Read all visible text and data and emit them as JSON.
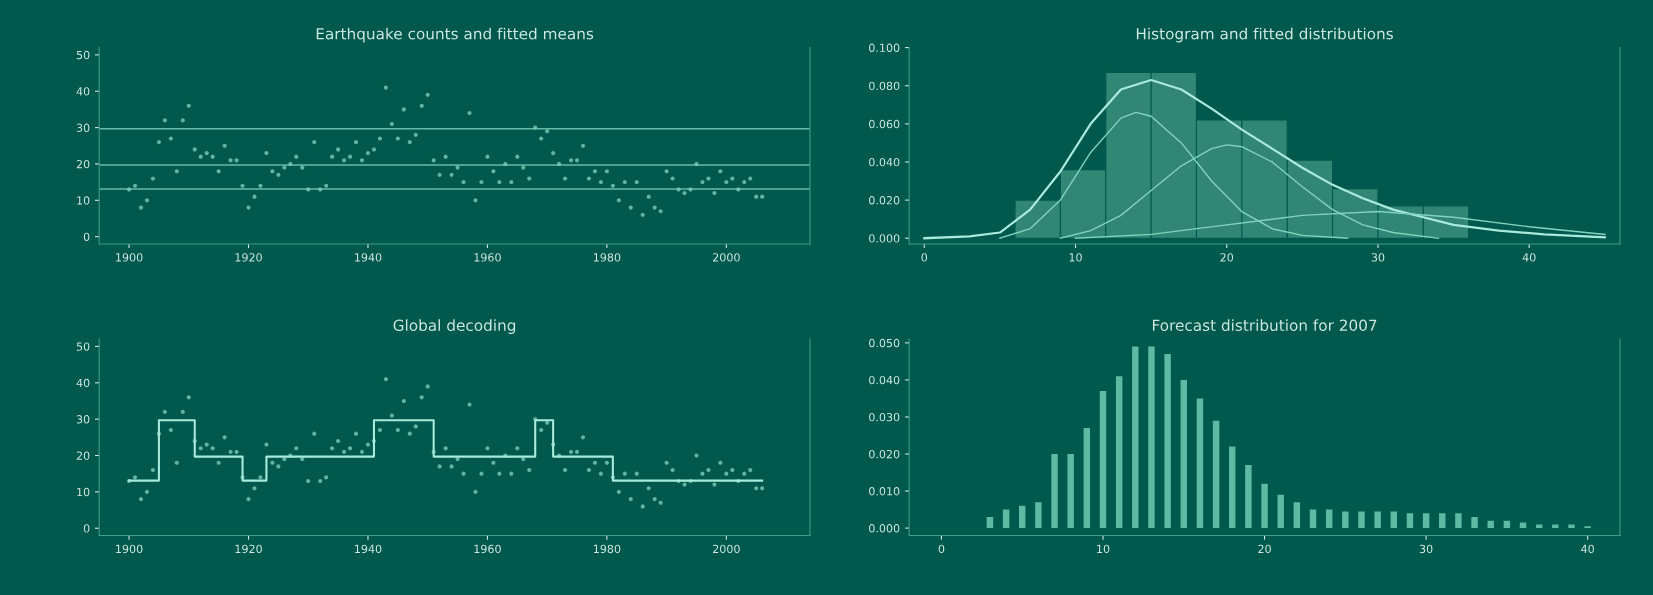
{
  "chart_data": [
    {
      "type": "scatter",
      "title": "Earthquake counts and fitted means",
      "color": "#7fd3bf",
      "grid": false,
      "x": [
        1900,
        1901,
        1902,
        1903,
        1904,
        1905,
        1906,
        1907,
        1908,
        1909,
        1910,
        1911,
        1912,
        1913,
        1914,
        1915,
        1916,
        1917,
        1918,
        1919,
        1920,
        1921,
        1922,
        1923,
        1924,
        1925,
        1926,
        1927,
        1928,
        1929,
        1930,
        1931,
        1932,
        1933,
        1934,
        1935,
        1936,
        1937,
        1938,
        1939,
        1940,
        1941,
        1942,
        1943,
        1944,
        1945,
        1946,
        1947,
        1948,
        1949,
        1950,
        1951,
        1952,
        1953,
        1954,
        1955,
        1956,
        1957,
        1958,
        1959,
        1960,
        1961,
        1962,
        1963,
        1964,
        1965,
        1966,
        1967,
        1968,
        1969,
        1970,
        1971,
        1972,
        1973,
        1974,
        1975,
        1976,
        1977,
        1978,
        1979,
        1980,
        1981,
        1982,
        1983,
        1984,
        1985,
        1986,
        1987,
        1988,
        1989,
        1990,
        1991,
        1992,
        1993,
        1994,
        1995,
        1996,
        1997,
        1998,
        1999,
        2000,
        2001,
        2002,
        2003,
        2004,
        2005,
        2006
      ],
      "values": [
        13,
        14,
        8,
        10,
        16,
        26,
        32,
        27,
        18,
        32,
        36,
        24,
        22,
        23,
        22,
        18,
        25,
        21,
        21,
        14,
        8,
        11,
        14,
        23,
        18,
        17,
        19,
        20,
        22,
        19,
        13,
        26,
        13,
        14,
        22,
        24,
        21,
        22,
        26,
        21,
        23,
        24,
        27,
        41,
        31,
        27,
        35,
        26,
        28,
        36,
        39,
        21,
        17,
        22,
        17,
        19,
        15,
        34,
        10,
        15,
        22,
        18,
        15,
        20,
        15,
        22,
        19,
        16,
        30,
        27,
        29,
        23,
        20,
        16,
        21,
        21,
        25,
        16,
        18,
        15,
        18,
        14,
        10,
        15,
        8,
        15,
        6,
        11,
        8,
        7,
        18,
        16,
        13,
        12,
        13,
        20,
        15,
        16,
        12,
        18,
        15,
        16,
        13,
        15,
        16,
        11,
        11
      ],
      "xlim": [
        1895,
        2014
      ],
      "ylim": [
        -2,
        52
      ],
      "xticks": [
        1900,
        1920,
        1940,
        1960,
        1980,
        2000
      ],
      "yticks": [
        0,
        10,
        20,
        30,
        40,
        50
      ],
      "ref_lines": [
        {
          "axis": "y",
          "value": 29.7,
          "color": "#7fd3bf"
        },
        {
          "axis": "y",
          "value": 19.7,
          "color": "#7fd3bf"
        },
        {
          "axis": "y",
          "value": 13.1,
          "color": "#7fd3bf"
        }
      ]
    },
    {
      "type": "histogram",
      "title": "Histogram and fitted distributions",
      "color": "#8fd9c6",
      "grid": false,
      "bins": [
        6,
        9,
        12,
        15,
        18,
        21,
        24,
        27,
        30,
        33,
        36
      ],
      "values": [
        0.02,
        0.036,
        0.087,
        0.087,
        0.062,
        0.062,
        0.041,
        0.026,
        0.017,
        0.017
      ],
      "series": [
        {
          "type": "line",
          "color": "#a8ebdc",
          "x": [
            0,
            3,
            5,
            7,
            9,
            11,
            13,
            15,
            17,
            19,
            21,
            23,
            25,
            27,
            29,
            31,
            33,
            35,
            38,
            41,
            45
          ],
          "values": [
            0,
            0.001,
            0.003,
            0.015,
            0.035,
            0.06,
            0.078,
            0.083,
            0.078,
            0.068,
            0.057,
            0.047,
            0.037,
            0.028,
            0.021,
            0.015,
            0.011,
            0.007,
            0.004,
            0.002,
            0.0005
          ]
        },
        {
          "type": "line",
          "color": "#7fd3bf",
          "x": [
            5,
            7,
            9,
            11,
            13,
            14,
            15,
            17,
            19,
            21,
            23,
            25,
            28
          ],
          "values": [
            0,
            0.005,
            0.02,
            0.045,
            0.063,
            0.066,
            0.064,
            0.05,
            0.03,
            0.014,
            0.005,
            0.0015,
            0
          ]
        },
        {
          "type": "line",
          "color": "#7fd3bf",
          "x": [
            9,
            11,
            13,
            15,
            17,
            19,
            20,
            21,
            23,
            25,
            27,
            29,
            31,
            34
          ],
          "values": [
            0,
            0.004,
            0.012,
            0.025,
            0.038,
            0.047,
            0.049,
            0.048,
            0.04,
            0.027,
            0.015,
            0.007,
            0.003,
            0
          ]
        },
        {
          "type": "line",
          "color": "#7fd3bf",
          "x": [
            10,
            15,
            20,
            25,
            30,
            35,
            40,
            45
          ],
          "values": [
            0,
            0.002,
            0.007,
            0.012,
            0.014,
            0.011,
            0.006,
            0.002
          ]
        }
      ],
      "xlim": [
        -1,
        46
      ],
      "ylim": [
        -0.003,
        0.1
      ],
      "xticks": [
        0,
        10,
        20,
        30,
        40
      ],
      "yticks": [
        {
          "value": 0,
          "label": "0.000"
        },
        {
          "value": 0.02,
          "label": "0.020"
        },
        {
          "value": 0.04,
          "label": "0.040"
        },
        {
          "value": 0.06,
          "label": "0.060"
        },
        {
          "value": 0.08,
          "label": "0.080"
        },
        {
          "value": 0.1,
          "label": "0.100"
        }
      ]
    },
    {
      "type": "scatter",
      "title": "Global decoding",
      "color": "#7fd3bf",
      "grid": false,
      "series": [
        {
          "type": "scatter",
          "color": "#7fd3bf",
          "x": [
            1900,
            1901,
            1902,
            1903,
            1904,
            1905,
            1906,
            1907,
            1908,
            1909,
            1910,
            1911,
            1912,
            1913,
            1914,
            1915,
            1916,
            1917,
            1918,
            1919,
            1920,
            1921,
            1922,
            1923,
            1924,
            1925,
            1926,
            1927,
            1928,
            1929,
            1930,
            1931,
            1932,
            1933,
            1934,
            1935,
            1936,
            1937,
            1938,
            1939,
            1940,
            1941,
            1942,
            1943,
            1944,
            1945,
            1946,
            1947,
            1948,
            1949,
            1950,
            1951,
            1952,
            1953,
            1954,
            1955,
            1956,
            1957,
            1958,
            1959,
            1960,
            1961,
            1962,
            1963,
            1964,
            1965,
            1966,
            1967,
            1968,
            1969,
            1970,
            1971,
            1972,
            1973,
            1974,
            1975,
            1976,
            1977,
            1978,
            1979,
            1980,
            1981,
            1982,
            1983,
            1984,
            1985,
            1986,
            1987,
            1988,
            1989,
            1990,
            1991,
            1992,
            1993,
            1994,
            1995,
            1996,
            1997,
            1998,
            1999,
            2000,
            2001,
            2002,
            2003,
            2004,
            2005,
            2006
          ],
          "values": [
            13,
            14,
            8,
            10,
            16,
            26,
            32,
            27,
            18,
            32,
            36,
            24,
            22,
            23,
            22,
            18,
            25,
            21,
            21,
            14,
            8,
            11,
            14,
            23,
            18,
            17,
            19,
            20,
            22,
            19,
            13,
            26,
            13,
            14,
            22,
            24,
            21,
            22,
            26,
            21,
            23,
            24,
            27,
            41,
            31,
            27,
            35,
            26,
            28,
            36,
            39,
            21,
            17,
            22,
            17,
            19,
            15,
            34,
            10,
            15,
            22,
            18,
            15,
            20,
            15,
            22,
            19,
            16,
            30,
            27,
            29,
            23,
            20,
            16,
            21,
            21,
            25,
            16,
            18,
            15,
            18,
            14,
            10,
            15,
            8,
            15,
            6,
            11,
            8,
            7,
            18,
            16,
            13,
            12,
            13,
            20,
            15,
            16,
            12,
            18,
            15,
            16,
            13,
            15,
            16,
            11,
            11
          ]
        },
        {
          "type": "step",
          "color": "#a8ebdc",
          "x": [
            1900,
            1905,
            1911,
            1919,
            1923,
            1941,
            1951,
            1968,
            1971,
            1981,
            2006
          ],
          "values": [
            13.1,
            29.7,
            19.7,
            13.1,
            19.7,
            29.7,
            19.7,
            29.7,
            19.7,
            13.1,
            13.1
          ]
        }
      ],
      "xlim": [
        1895,
        2014
      ],
      "ylim": [
        -2,
        52
      ],
      "xticks": [
        1900,
        1920,
        1940,
        1960,
        1980,
        2000
      ],
      "yticks": [
        0,
        10,
        20,
        30,
        40,
        50
      ]
    },
    {
      "type": "bar",
      "title": "Forecast distribution for 2007",
      "color": "#5fb9a3",
      "grid": false,
      "x": [
        3,
        4,
        5,
        6,
        7,
        8,
        9,
        10,
        11,
        12,
        13,
        14,
        15,
        16,
        17,
        18,
        19,
        20,
        21,
        22,
        23,
        24,
        25,
        26,
        27,
        28,
        29,
        30,
        31,
        32,
        33,
        34,
        35,
        36,
        37,
        38,
        39,
        40
      ],
      "values": [
        0.003,
        0.005,
        0.006,
        0.007,
        0.02,
        0.02,
        0.027,
        0.037,
        0.041,
        0.049,
        0.049,
        0.047,
        0.04,
        0.035,
        0.029,
        0.022,
        0.017,
        0.012,
        0.009,
        0.007,
        0.005,
        0.005,
        0.0045,
        0.0045,
        0.0045,
        0.0045,
        0.004,
        0.004,
        0.004,
        0.004,
        0.003,
        0.002,
        0.002,
        0.0015,
        0.001,
        0.001,
        0.001,
        0.0005
      ],
      "xlim": [
        -2,
        42
      ],
      "ylim": [
        -0.002,
        0.051
      ],
      "xticks": [
        0,
        10,
        20,
        30,
        40
      ],
      "yticks": [
        {
          "value": 0,
          "label": "0.000"
        },
        {
          "value": 0.01,
          "label": "0.010"
        },
        {
          "value": 0.02,
          "label": "0.020"
        },
        {
          "value": 0.03,
          "label": "0.030"
        },
        {
          "value": 0.04,
          "label": "0.040"
        },
        {
          "value": 0.05,
          "label": "0.050"
        }
      ]
    }
  ]
}
